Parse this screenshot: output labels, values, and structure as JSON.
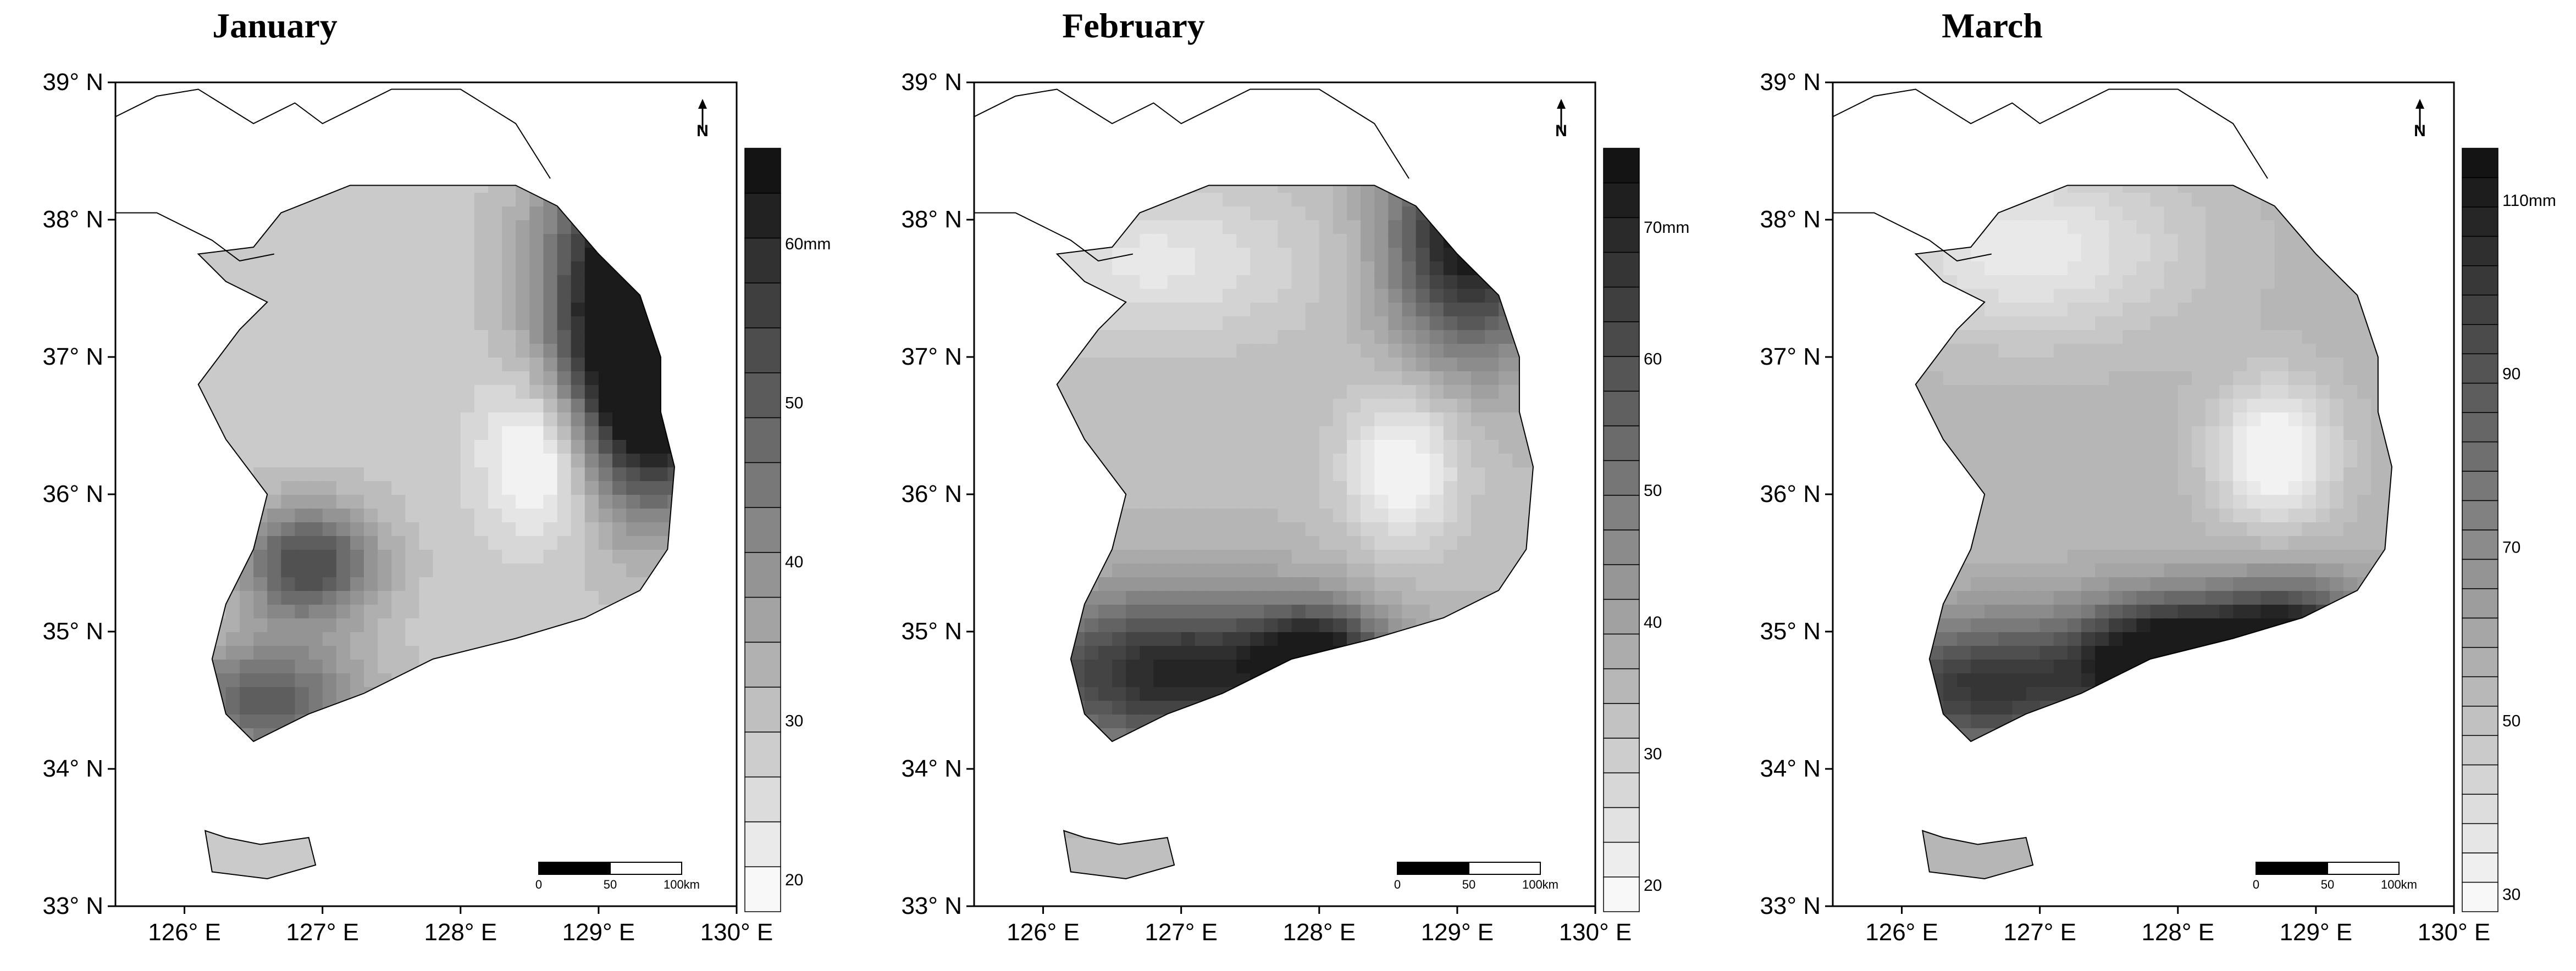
{
  "panels": [
    {
      "title": "January",
      "colorbar": {
        "labels": [
          "20",
          "30",
          "40",
          "50",
          "60mm"
        ],
        "bands": 17,
        "values": [
          20,
          30,
          40,
          50,
          60
        ]
      },
      "field": {
        "lobes": [
          {
            "lon": 129.3,
            "lat": 37.6,
            "sx": 0.45,
            "sy": 0.8,
            "a": 1.0
          },
          {
            "lon": 129.4,
            "lat": 36.7,
            "sx": 0.4,
            "sy": 0.6,
            "a": 0.7
          },
          {
            "lon": 126.9,
            "lat": 35.5,
            "sx": 0.35,
            "sy": 0.3,
            "a": 0.6
          },
          {
            "lon": 126.6,
            "lat": 34.5,
            "sx": 0.5,
            "sy": 0.3,
            "a": 0.5
          },
          {
            "lon": 128.6,
            "lat": 36.3,
            "sx": 0.3,
            "sy": 0.4,
            "a": -0.35
          }
        ],
        "base": 0.22
      }
    },
    {
      "title": "February",
      "colorbar": {
        "labels": [
          "20",
          "30",
          "40",
          "50",
          "60",
          "70mm"
        ],
        "bands": 22,
        "values": [
          20,
          30,
          40,
          50,
          60,
          70
        ]
      },
      "field": {
        "lobes": [
          {
            "lon": 129.1,
            "lat": 37.9,
            "sx": 0.4,
            "sy": 0.6,
            "a": 0.8
          },
          {
            "lon": 127.0,
            "lat": 34.7,
            "sx": 0.9,
            "sy": 0.4,
            "a": 0.7
          },
          {
            "lon": 128.0,
            "lat": 34.8,
            "sx": 0.3,
            "sy": 0.25,
            "a": 0.6
          },
          {
            "lon": 128.6,
            "lat": 36.2,
            "sx": 0.3,
            "sy": 0.4,
            "a": -0.3
          },
          {
            "lon": 126.8,
            "lat": 37.7,
            "sx": 0.8,
            "sy": 0.4,
            "a": -0.2
          }
        ],
        "base": 0.28
      }
    },
    {
      "title": "March",
      "colorbar": {
        "labels": [
          "30",
          "50",
          "70",
          "90",
          "110mm"
        ],
        "bands": 26,
        "values": [
          30,
          50,
          70,
          90,
          110
        ]
      },
      "field": {
        "lobes": [
          {
            "lon": 127.9,
            "lat": 34.8,
            "sx": 0.45,
            "sy": 0.3,
            "a": 0.9
          },
          {
            "lon": 128.8,
            "lat": 34.9,
            "sx": 0.4,
            "sy": 0.3,
            "a": 0.85
          },
          {
            "lon": 126.6,
            "lat": 34.6,
            "sx": 0.6,
            "sy": 0.35,
            "a": 0.6
          },
          {
            "lon": 128.7,
            "lat": 36.3,
            "sx": 0.3,
            "sy": 0.35,
            "a": -0.35
          },
          {
            "lon": 126.9,
            "lat": 37.8,
            "sx": 0.8,
            "sy": 0.45,
            "a": -0.25
          }
        ],
        "base": 0.3
      }
    }
  ],
  "axes": {
    "lat_labels": [
      "39° N",
      "38° N",
      "37° N",
      "36° N",
      "35° N",
      "34° N",
      "33° N"
    ],
    "lat_values": [
      39,
      38,
      37,
      36,
      35,
      34,
      33
    ],
    "lon_labels": [
      "126° E",
      "127° E",
      "128° E",
      "129° E",
      "130° E"
    ],
    "lon_values": [
      126,
      127,
      128,
      129,
      130
    ]
  },
  "scale_bar": {
    "labels": [
      "0",
      "50",
      "100km"
    ]
  },
  "north_arrow": {
    "label": "N",
    "icon": "north-arrow-icon"
  },
  "colors": {
    "frame": "#000000",
    "background": "#ffffff",
    "dark": "#1a1a1a",
    "light": "#f2f2f2"
  }
}
